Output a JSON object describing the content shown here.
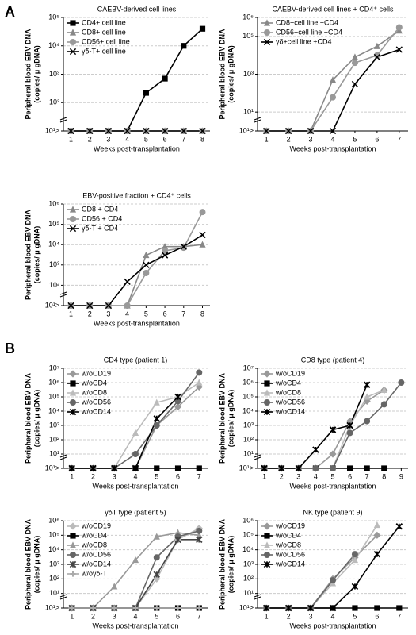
{
  "panel_labels": [
    "A",
    "B"
  ],
  "chart_data": [
    {
      "type": "line",
      "title": "CAEBV-derived cell lines",
      "y_label": [
        "Peripheral blood EBV DNA",
        "(copies/ μ gDNA)"
      ],
      "x_label": "Weeks post-transplantation",
      "x": [
        1,
        2,
        3,
        4,
        5,
        6,
        7,
        8
      ],
      "xlim": [
        0.6,
        8.4
      ],
      "xticks": [
        1,
        2,
        3,
        4,
        5,
        6,
        7,
        8
      ],
      "log_y": true,
      "ylim": [
        10,
        100000
      ],
      "yticks": [
        {
          "value": 10,
          "label": "10¹>"
        },
        {
          "value": 100,
          "label": "10²"
        },
        {
          "value": 1000,
          "label": "10³"
        },
        {
          "value": 10000,
          "label": "10⁴"
        },
        {
          "value": 100000,
          "label": "10⁵"
        }
      ],
      "grid": true,
      "legend": "upper left",
      "series": [
        {
          "name": "CD4+ cell line",
          "color": "#000000",
          "marker": "square",
          "values": [
            10,
            10,
            10,
            10,
            220,
            700,
            10000,
            40000
          ]
        },
        {
          "name": "CD8+ cell line",
          "color": "#888888",
          "marker": "triangle",
          "values": [
            10,
            10,
            10,
            10,
            10,
            10,
            10,
            10
          ]
        },
        {
          "name": "CD56+ cell line",
          "color": "#999999",
          "marker": "circle",
          "values": [
            10,
            10,
            10,
            10,
            10,
            10,
            10,
            10
          ]
        },
        {
          "name": "γδ-T+ cell line",
          "color": "#000000",
          "marker": "cross",
          "values": [
            10,
            10,
            10,
            10,
            10,
            10,
            10,
            10
          ]
        }
      ]
    },
    {
      "type": "line",
      "title": "CAEBV-derived cell lines + CD4⁺ cells",
      "y_label": [
        "Peripheral blood EBV DNA",
        "(copies/ μ gDNA)"
      ],
      "x_label": "Weeks post-transplantation",
      "x": [
        1,
        2,
        3,
        4,
        5,
        6,
        7
      ],
      "xlim": [
        0.6,
        7.4
      ],
      "xticks": [
        1,
        2,
        3,
        4,
        5,
        6,
        7
      ],
      "log_y": true,
      "ylim": [
        1,
        1000000
      ],
      "yticks": [
        {
          "value": 1,
          "label": "10¹>"
        },
        {
          "value": 10,
          "label": "10¹"
        },
        {
          "value": 1000,
          "label": "10³"
        },
        {
          "value": 100000,
          "label": "10⁵"
        },
        {
          "value": 1000000,
          "label": "10⁶"
        }
      ],
      "grid": true,
      "legend": "upper left",
      "series": [
        {
          "name": "CD8+cell line +CD4",
          "color": "#888888",
          "marker": "triangle",
          "values": [
            1,
            1,
            1,
            500,
            8000,
            30000,
            200000
          ]
        },
        {
          "name": "CD56+cell line +CD4",
          "color": "#999999",
          "marker": "circle",
          "values": [
            1,
            1,
            1,
            60,
            4000,
            10000,
            300000
          ]
        },
        {
          "name": "γδ+cell line +CD4",
          "color": "#000000",
          "marker": "cross",
          "values": [
            1,
            1,
            1,
            1,
            300,
            8000,
            20000
          ]
        }
      ]
    },
    {
      "type": "line",
      "title": "EBV-positive fraction + CD4⁺ cells",
      "y_label": [
        "Peripheral blood EBV DNA",
        "(copies/ μ gDNA)"
      ],
      "x_label": "Weeks post-transplantation",
      "x": [
        1,
        2,
        3,
        4,
        5,
        6,
        7,
        8
      ],
      "xlim": [
        0.6,
        8.4
      ],
      "xticks": [
        1,
        2,
        3,
        4,
        5,
        6,
        7,
        8
      ],
      "log_y": true,
      "ylim": [
        10,
        1000000
      ],
      "yticks": [
        {
          "value": 10,
          "label": "10¹>"
        },
        {
          "value": 100,
          "label": "10²"
        },
        {
          "value": 1000,
          "label": "10³"
        },
        {
          "value": 10000,
          "label": "10⁴"
        },
        {
          "value": 100000,
          "label": "10⁵"
        },
        {
          "value": 1000000,
          "label": "10⁶"
        }
      ],
      "grid": true,
      "legend": "upper left",
      "series": [
        {
          "name": "CD8  +  CD4",
          "color": "#888888",
          "marker": "triangle",
          "values": [
            10,
            10,
            10,
            10,
            3000,
            8000,
            8000,
            10000
          ]
        },
        {
          "name": "CD56  +  CD4",
          "color": "#999999",
          "marker": "circle",
          "values": [
            10,
            10,
            10,
            10,
            400,
            5000,
            7000,
            400000
          ]
        },
        {
          "name": "γδ-T  +  CD4",
          "color": "#000000",
          "marker": "cross",
          "values": [
            10,
            10,
            10,
            150,
            1000,
            3000,
            8000,
            30000
          ]
        }
      ]
    },
    {
      "type": "line",
      "title": "CD4 type (patient 1)",
      "y_label": [
        "Peripheral blood EBV DNA",
        "(copies/ μ gDNA)"
      ],
      "x_label": "Weeks post-transplantation",
      "x": [
        1,
        2,
        3,
        4,
        5,
        6,
        7
      ],
      "xlim": [
        0.6,
        7.4
      ],
      "xticks": [
        1,
        2,
        3,
        4,
        5,
        6,
        7
      ],
      "log_y": true,
      "ylim": [
        1,
        10000000
      ],
      "yticks": [
        {
          "value": 1,
          "label": "10¹>"
        },
        {
          "value": 10,
          "label": "10¹"
        },
        {
          "value": 100,
          "label": "10²"
        },
        {
          "value": 1000,
          "label": "10³"
        },
        {
          "value": 10000,
          "label": "10⁴"
        },
        {
          "value": 100000,
          "label": "10⁵"
        },
        {
          "value": 1000000,
          "label": "10⁶"
        },
        {
          "value": 10000000,
          "label": "10⁷"
        }
      ],
      "grid": true,
      "legend": "upper left",
      "series": [
        {
          "name": "w/oCD19",
          "color": "#999999",
          "marker": "diamond",
          "values": [
            1,
            1,
            1,
            1,
            1000,
            20000,
            500000
          ]
        },
        {
          "name": "w/oCD4",
          "color": "#000000",
          "marker": "square",
          "values": [
            1,
            1,
            1,
            1,
            1,
            1,
            1
          ]
        },
        {
          "name": "w/oCD8",
          "color": "#bbbbbb",
          "marker": "triangle",
          "values": [
            1,
            1,
            1,
            300,
            40000,
            100000,
            1000000
          ]
        },
        {
          "name": "w/oCD56",
          "color": "#666666",
          "marker": "circle",
          "values": [
            1,
            1,
            1,
            10,
            1000,
            50000,
            5000000
          ]
        },
        {
          "name": "w/oCD14",
          "color": "#000000",
          "marker": "x",
          "values": [
            1,
            1,
            1,
            1,
            3000,
            100000,
            null
          ]
        }
      ]
    },
    {
      "type": "line",
      "title": "CD8 type (patient 4)",
      "y_label": [
        "Peripheral blood EBV DNA",
        "(copies/ μ gDNA)"
      ],
      "x_label": "Weeks post-transplantation",
      "x": [
        1,
        2,
        3,
        4,
        5,
        6,
        7,
        8,
        9
      ],
      "xlim": [
        0.6,
        9.4
      ],
      "xticks": [
        1,
        2,
        3,
        4,
        5,
        6,
        7,
        8,
        9
      ],
      "log_y": true,
      "ylim": [
        1,
        10000000
      ],
      "yticks": [
        {
          "value": 1,
          "label": "10¹>"
        },
        {
          "value": 10,
          "label": "10¹"
        },
        {
          "value": 100,
          "label": "10²"
        },
        {
          "value": 1000,
          "label": "10³"
        },
        {
          "value": 10000,
          "label": "10⁴"
        },
        {
          "value": 100000,
          "label": "10⁵"
        },
        {
          "value": 1000000,
          "label": "10⁶"
        },
        {
          "value": 10000000,
          "label": "10⁷"
        }
      ],
      "grid": true,
      "legend": "upper left",
      "series": [
        {
          "name": "w/oCD19",
          "color": "#999999",
          "marker": "diamond",
          "values": [
            1,
            1,
            1,
            1,
            10,
            2000,
            50000,
            300000,
            null
          ]
        },
        {
          "name": "w/oCD4",
          "color": "#000000",
          "marker": "square",
          "values": [
            1,
            1,
            1,
            1,
            1,
            1,
            1,
            1,
            null
          ]
        },
        {
          "name": "w/oCD8",
          "color": "#bbbbbb",
          "marker": "triangle",
          "values": [
            1,
            1,
            1,
            1,
            1,
            1000,
            100000,
            300000,
            null
          ]
        },
        {
          "name": "w/oCD56",
          "color": "#666666",
          "marker": "circle",
          "values": [
            1,
            1,
            1,
            1,
            1,
            300,
            2000,
            30000,
            1000000
          ]
        },
        {
          "name": "w/oCD14",
          "color": "#000000",
          "marker": "x",
          "values": [
            1,
            1,
            1,
            20,
            500,
            1000,
            700000,
            null,
            null
          ]
        }
      ]
    },
    {
      "type": "line",
      "title": "γδT type (patient 5)",
      "y_label": [
        "Peripheral blood EBV DNA",
        "(copies/ μ gDNA)"
      ],
      "x_label": "Weeks post-transplantation",
      "x": [
        1,
        2,
        3,
        4,
        5,
        6,
        7
      ],
      "xlim": [
        0.6,
        7.4
      ],
      "xticks": [
        1,
        2,
        3,
        4,
        5,
        6,
        7
      ],
      "log_y": true,
      "ylim": [
        1,
        1000000
      ],
      "yticks": [
        {
          "value": 1,
          "label": "10¹>"
        },
        {
          "value": 10,
          "label": "10¹"
        },
        {
          "value": 100,
          "label": "10²"
        },
        {
          "value": 1000,
          "label": "10³"
        },
        {
          "value": 10000,
          "label": "10⁴"
        },
        {
          "value": 100000,
          "label": "10⁵"
        },
        {
          "value": 1000000,
          "label": "10⁶"
        }
      ],
      "grid": true,
      "legend": "upper left",
      "series": [
        {
          "name": "w/oCD19",
          "color": "#bbbbbb",
          "marker": "diamond",
          "values": [
            1,
            1,
            1,
            1,
            100,
            50000,
            300000
          ]
        },
        {
          "name": "w/oCD4",
          "color": "#000000",
          "marker": "square",
          "values": [
            1,
            1,
            1,
            1,
            1,
            1,
            1
          ]
        },
        {
          "name": "w/oCD8",
          "color": "#999999",
          "marker": "triangle",
          "values": [
            1,
            1,
            30,
            2000,
            80000,
            150000,
            100000
          ]
        },
        {
          "name": "w/oCD56",
          "color": "#666666",
          "marker": "circle",
          "values": [
            1,
            1,
            1,
            1,
            3000,
            80000,
            200000
          ]
        },
        {
          "name": "w/oCD14",
          "color": "#444444",
          "marker": "x",
          "values": [
            1,
            1,
            1,
            1,
            200,
            50000,
            50000
          ]
        },
        {
          "name": "w/oγδ-T",
          "color": "#aaaaaa",
          "marker": "plus",
          "values": [
            1,
            1,
            1,
            1,
            1,
            1,
            1
          ]
        }
      ]
    },
    {
      "type": "line",
      "title": "NK type (patient 9)",
      "y_label": [
        "Peripheral blood EBV DNA",
        "(copies/ μ gDNA)"
      ],
      "x_label": "Weeks post-transplantation",
      "x": [
        1,
        2,
        3,
        4,
        5,
        6,
        7
      ],
      "xlim": [
        0.6,
        7.4
      ],
      "xticks": [
        1,
        2,
        3,
        4,
        5,
        6,
        7
      ],
      "log_y": true,
      "ylim": [
        1,
        1000000
      ],
      "yticks": [
        {
          "value": 1,
          "label": "10¹>"
        },
        {
          "value": 10,
          "label": "10¹"
        },
        {
          "value": 100,
          "label": "10²"
        },
        {
          "value": 1000,
          "label": "10³"
        },
        {
          "value": 10000,
          "label": "10⁴"
        },
        {
          "value": 100000,
          "label": "10⁵"
        },
        {
          "value": 1000000,
          "label": "10⁶"
        }
      ],
      "grid": true,
      "legend": "upper left",
      "series": [
        {
          "name": "w/oCD19",
          "color": "#999999",
          "marker": "diamond",
          "values": [
            1,
            1,
            1,
            100,
            3000,
            100000,
            null
          ]
        },
        {
          "name": "w/oCD4",
          "color": "#000000",
          "marker": "square",
          "values": [
            1,
            1,
            1,
            1,
            1,
            1,
            1
          ]
        },
        {
          "name": "w/oCD8",
          "color": "#bbbbbb",
          "marker": "triangle",
          "values": [
            1,
            1,
            1,
            50,
            2000,
            500000,
            null
          ]
        },
        {
          "name": "w/oCD56",
          "color": "#666666",
          "marker": "circle",
          "values": [
            1,
            1,
            1,
            80,
            5000,
            null,
            null
          ]
        },
        {
          "name": "w/oCD14",
          "color": "#000000",
          "marker": "x",
          "values": [
            1,
            1,
            1,
            1,
            30,
            5000,
            400000
          ]
        }
      ]
    }
  ]
}
